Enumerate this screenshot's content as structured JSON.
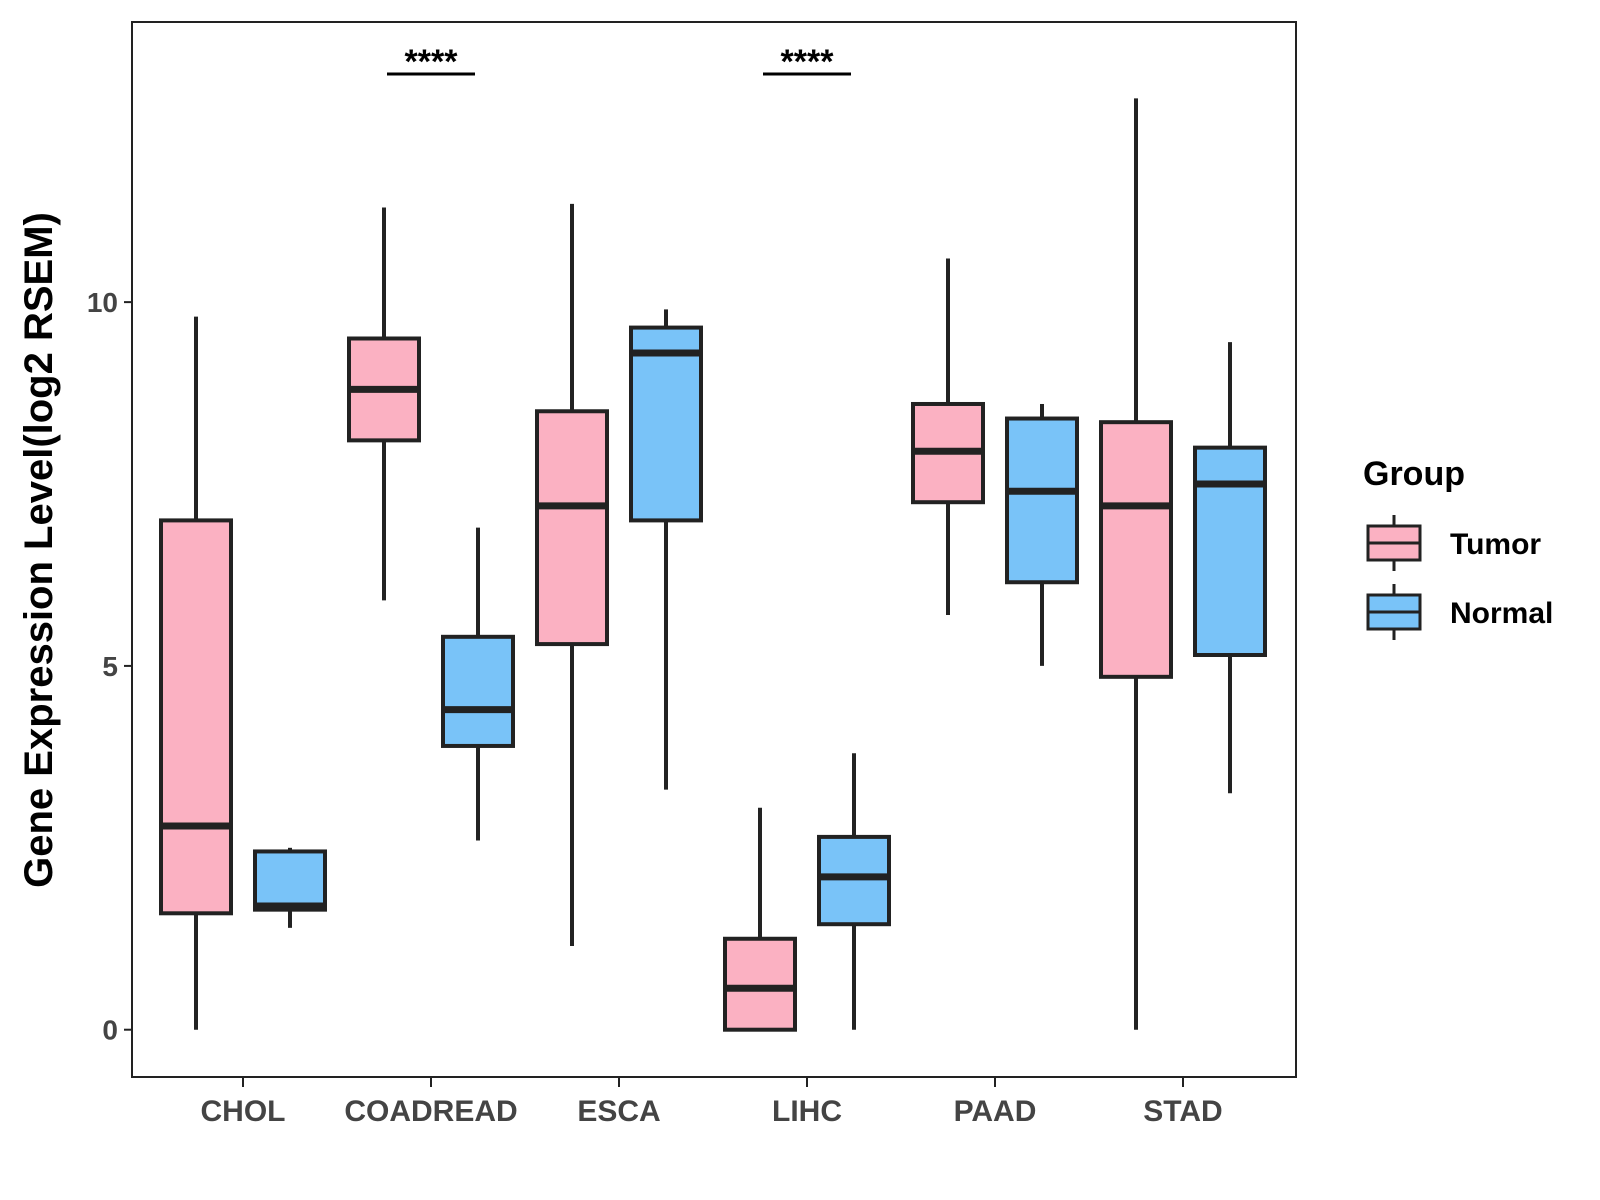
{
  "chart_data": {
    "type": "boxplot",
    "title": "",
    "xlabel": "",
    "ylabel": "Gene Expression Level(log2 RSEM)",
    "ylim": [
      -0.65,
      13.85
    ],
    "yticks": [
      0,
      5,
      10
    ],
    "y_tick_labels": [
      "0",
      "5",
      "10"
    ],
    "grid": false,
    "categories": [
      "CHOL",
      "COADREAD",
      "ESCA",
      "LIHC",
      "PAAD",
      "STAD"
    ],
    "legend": {
      "title": "Group",
      "position": "right",
      "entries": [
        {
          "name": "Tumor",
          "color": "#FBB1C2"
        },
        {
          "name": "Normal",
          "color": "#79C3F8"
        }
      ]
    },
    "series": [
      {
        "name": "Tumor",
        "color": "#FBB1C2",
        "boxes": [
          {
            "category": "CHOL",
            "min": 0.0,
            "q1": 1.6,
            "median": 2.8,
            "q3": 7.0,
            "max": 9.8
          },
          {
            "category": "COADREAD",
            "min": 5.9,
            "q1": 8.1,
            "median": 8.8,
            "q3": 9.5,
            "max": 11.3
          },
          {
            "category": "ESCA",
            "min": 1.15,
            "q1": 5.3,
            "median": 7.2,
            "q3": 8.5,
            "max": 11.35
          },
          {
            "category": "LIHC",
            "min": 0.0,
            "q1": 0.0,
            "median": 0.57,
            "q3": 1.25,
            "max": 3.05
          },
          {
            "category": "PAAD",
            "min": 5.7,
            "q1": 7.25,
            "median": 7.95,
            "q3": 8.6,
            "max": 10.6
          },
          {
            "category": "STAD",
            "min": 0.0,
            "q1": 4.85,
            "median": 7.2,
            "q3": 8.35,
            "max": 12.8
          }
        ]
      },
      {
        "name": "Normal",
        "color": "#79C3F8",
        "boxes": [
          {
            "category": "CHOL",
            "min": 1.4,
            "q1": 1.65,
            "median": 1.7,
            "q3": 2.45,
            "max": 2.5
          },
          {
            "category": "COADREAD",
            "min": 2.6,
            "q1": 3.9,
            "median": 4.4,
            "q3": 5.4,
            "max": 6.9
          },
          {
            "category": "ESCA",
            "min": 3.3,
            "q1": 7.0,
            "median": 9.3,
            "q3": 9.65,
            "max": 9.9
          },
          {
            "category": "LIHC",
            "min": 0.0,
            "q1": 1.45,
            "median": 2.1,
            "q3": 2.65,
            "max": 3.8
          },
          {
            "category": "PAAD",
            "min": 5.0,
            "q1": 6.15,
            "median": 7.4,
            "q3": 8.4,
            "max": 8.6
          },
          {
            "category": "STAD",
            "min": 3.25,
            "q1": 5.15,
            "median": 7.5,
            "q3": 8.0,
            "max": 9.45
          }
        ]
      }
    ],
    "annotations": [
      {
        "category": "COADREAD",
        "text": "****"
      },
      {
        "category": "LIHC",
        "text": "****"
      }
    ]
  }
}
